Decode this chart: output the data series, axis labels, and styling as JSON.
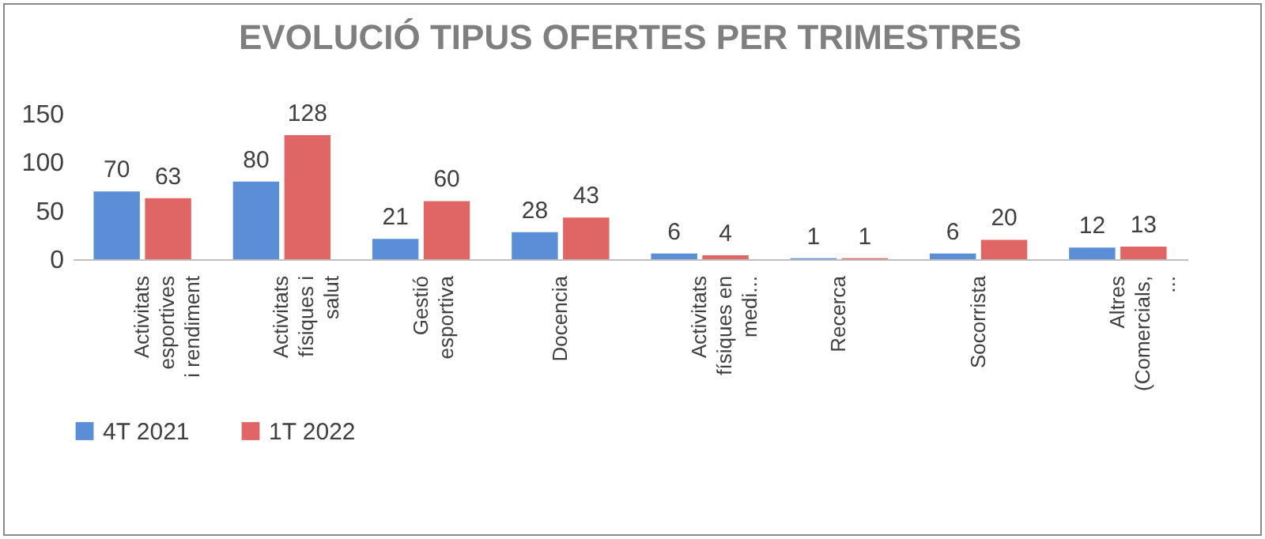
{
  "chart_data": {
    "type": "bar",
    "title": "EVOLUCIÓ TIPUS OFERTES PER TRIMESTRES",
    "categories": [
      "Activitats esportives i rendiment",
      "Activitats físiques i salut",
      "Gestió esportiva",
      "Docencia",
      "Activitats físiques en medi...",
      "Recerca",
      "Socorrista",
      "Altres (Comercials, ..."
    ],
    "series": [
      {
        "name": "4T 2021",
        "color": "#5b8ed6",
        "values": [
          70,
          80,
          21,
          28,
          6,
          1,
          6,
          12
        ]
      },
      {
        "name": "1T 2022",
        "color": "#e06666",
        "values": [
          63,
          128,
          60,
          43,
          4,
          1,
          20,
          13
        ]
      }
    ],
    "ylim": [
      0,
      150
    ],
    "yticks": [
      0,
      50,
      100,
      150
    ],
    "grid": false,
    "legend": "bottom",
    "data_labels": true
  }
}
